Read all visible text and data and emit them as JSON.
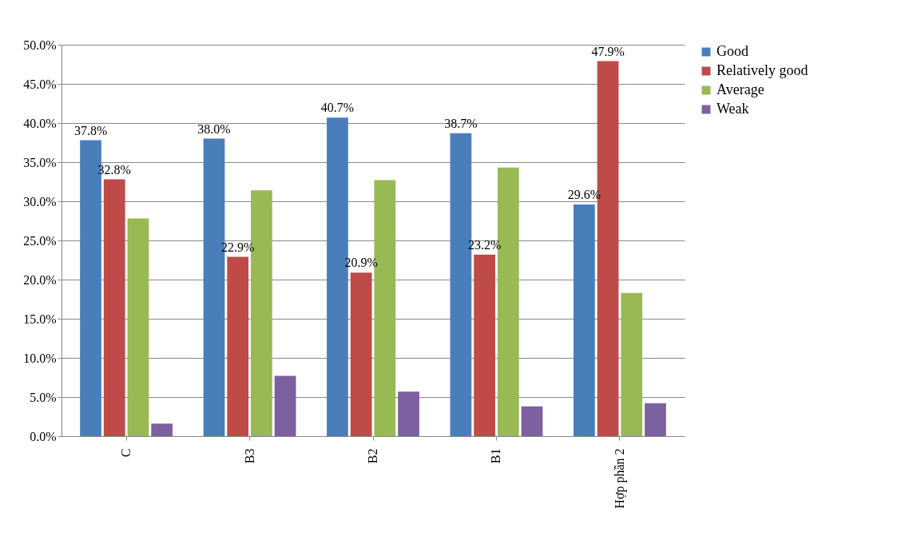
{
  "chart_data": {
    "type": "bar",
    "categories": [
      "C",
      "B3",
      "B2",
      "B1",
      "Hợp phần 2"
    ],
    "series": [
      {
        "name": "Good",
        "color": "#4a7ebb",
        "values": [
          37.8,
          38.0,
          40.7,
          38.7,
          29.6
        ],
        "value_labels": [
          "37.8%",
          "38.0%",
          "40.7%",
          "38.7%",
          "29.6%"
        ]
      },
      {
        "name": "Relatively good",
        "color": "#be4b48",
        "values": [
          32.8,
          22.9,
          20.9,
          23.2,
          47.9
        ],
        "value_labels": [
          "32.8%",
          "22.9%",
          "20.9%",
          "23.2%",
          "47.9%"
        ]
      },
      {
        "name": "Average",
        "color": "#98b954",
        "values": [
          27.8,
          31.4,
          32.7,
          34.3,
          18.3
        ]
      },
      {
        "name": "Weak",
        "color": "#7d60a0",
        "values": [
          1.6,
          7.7,
          5.7,
          3.8,
          4.2
        ]
      }
    ],
    "ylim": [
      0,
      50
    ],
    "yticks": [
      {
        "value": 0,
        "label": "0.0%"
      },
      {
        "value": 5,
        "label": "5.0%"
      },
      {
        "value": 10,
        "label": "10.0%"
      },
      {
        "value": 15,
        "label": "15.0%"
      },
      {
        "value": 20,
        "label": "20.0%"
      },
      {
        "value": 25,
        "label": "25.0%"
      },
      {
        "value": 30,
        "label": "30.0%"
      },
      {
        "value": 35,
        "label": "35.0%"
      },
      {
        "value": 40,
        "label": "40.0%"
      },
      {
        "value": 45,
        "label": "45.0%"
      },
      {
        "value": 50,
        "label": "50.0%"
      }
    ],
    "grid": "y",
    "legend": "right"
  }
}
